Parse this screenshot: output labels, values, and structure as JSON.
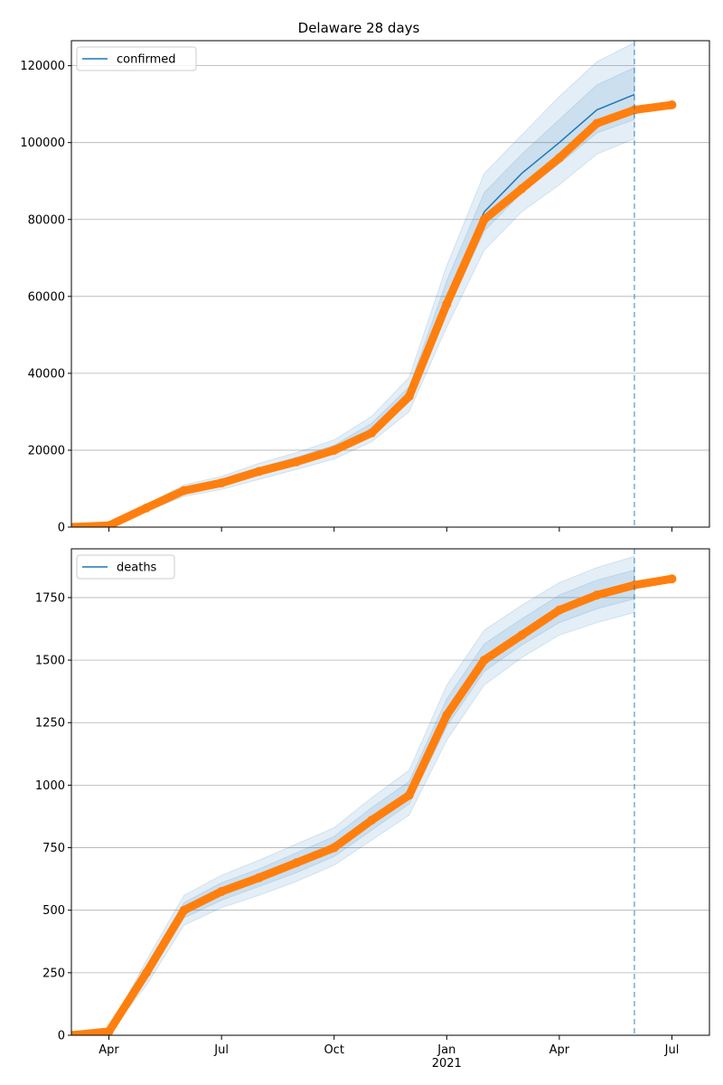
{
  "chart_data": [
    {
      "type": "line",
      "title": "Delaware 28 days",
      "x": [
        "2020-03",
        "2020-04",
        "2020-05",
        "2020-06",
        "2020-07",
        "2020-08",
        "2020-09",
        "2020-10",
        "2020-11",
        "2020-12",
        "2021-01",
        "2021-02",
        "2021-03",
        "2021-04",
        "2021-05",
        "2021-06",
        "2021-07"
      ],
      "series": [
        {
          "name": "confirmed",
          "color": "#1f77b4",
          "values": [
            0,
            400,
            5000,
            9500,
            11500,
            14500,
            17200,
            20200,
            25500,
            34500,
            60000,
            82000,
            92000,
            100000,
            108500,
            112500,
            null
          ]
        }
      ],
      "observed": {
        "color": "#ff7f0e",
        "values": [
          0,
          400,
          5000,
          9500,
          11500,
          14500,
          17000,
          20000,
          24500,
          34000,
          58000,
          80000,
          88000,
          96000,
          105000,
          108500,
          109800
        ]
      },
      "bands": [
        {
          "color": "#1f77b4",
          "lower": [
            0,
            300,
            4100,
            8000,
            9800,
            12400,
            15000,
            17700,
            22200,
            30000,
            52000,
            72000,
            82000,
            89000,
            97000,
            101000,
            null
          ],
          "upper": [
            0,
            500,
            5900,
            11000,
            13200,
            16600,
            19400,
            22700,
            28800,
            39000,
            68000,
            92000,
            102000,
            112000,
            121000,
            126000,
            null
          ]
        },
        {
          "color": "#1f77b4",
          "lower": [
            0,
            350,
            4600,
            8800,
            10700,
            13500,
            16200,
            19100,
            24000,
            32500,
            56000,
            77000,
            87000,
            94500,
            102500,
            106000,
            null
          ],
          "upper": [
            0,
            450,
            5400,
            10200,
            12300,
            15500,
            18200,
            21300,
            27000,
            36500,
            64000,
            87000,
            97000,
            106000,
            115000,
            119500,
            null
          ]
        }
      ],
      "vline": "2021-06",
      "xlim": [
        "2020-03",
        "2021-08"
      ],
      "ylim": [
        0,
        126500
      ],
      "yticks": [
        0,
        20000,
        40000,
        60000,
        80000,
        100000,
        120000
      ],
      "grid": "y",
      "legend": "upper left"
    },
    {
      "type": "line",
      "x": [
        "2020-03",
        "2020-04",
        "2020-05",
        "2020-06",
        "2020-07",
        "2020-08",
        "2020-09",
        "2020-10",
        "2020-11",
        "2020-12",
        "2021-01",
        "2021-02",
        "2021-03",
        "2021-04",
        "2021-05",
        "2021-06",
        "2021-07"
      ],
      "series": [
        {
          "name": "deaths",
          "color": "#1f77b4",
          "values": [
            0,
            15,
            250,
            500,
            575,
            630,
            690,
            755,
            865,
            970,
            1290,
            1510,
            1610,
            1705,
            1765,
            1805,
            null
          ]
        }
      ],
      "observed": {
        "color": "#ff7f0e",
        "values": [
          0,
          15,
          250,
          500,
          575,
          630,
          690,
          750,
          860,
          960,
          1280,
          1500,
          1600,
          1700,
          1760,
          1800,
          1825
        ]
      },
      "bands": [
        {
          "color": "#1f77b4",
          "lower": [
            0,
            10,
            200,
            440,
            510,
            560,
            615,
            680,
            780,
            880,
            1180,
            1400,
            1510,
            1600,
            1650,
            1690,
            null
          ],
          "upper": [
            0,
            20,
            300,
            560,
            640,
            700,
            765,
            830,
            950,
            1060,
            1400,
            1620,
            1720,
            1810,
            1870,
            1915,
            null
          ]
        },
        {
          "color": "#1f77b4",
          "lower": [
            0,
            12,
            225,
            470,
            540,
            595,
            650,
            715,
            820,
            925,
            1235,
            1455,
            1560,
            1650,
            1705,
            1745,
            null
          ],
          "upper": [
            0,
            18,
            275,
            530,
            610,
            665,
            730,
            795,
            910,
            1015,
            1345,
            1565,
            1665,
            1760,
            1820,
            1860,
            null
          ]
        }
      ],
      "vline": "2021-06",
      "xlim": [
        "2020-03",
        "2021-08"
      ],
      "ylim": [
        0,
        1945
      ],
      "yticks": [
        0,
        250,
        500,
        750,
        1000,
        1250,
        1500,
        1750
      ],
      "xticks": [
        {
          "value": "2020-04",
          "label": "Apr"
        },
        {
          "value": "2020-07",
          "label": "Jul"
        },
        {
          "value": "2020-10",
          "label": "Oct"
        },
        {
          "value": "2021-01",
          "label": "Jan\n2021"
        },
        {
          "value": "2021-04",
          "label": "Apr"
        },
        {
          "value": "2021-07",
          "label": "Jul"
        }
      ],
      "grid": "y",
      "legend": "upper left"
    }
  ]
}
